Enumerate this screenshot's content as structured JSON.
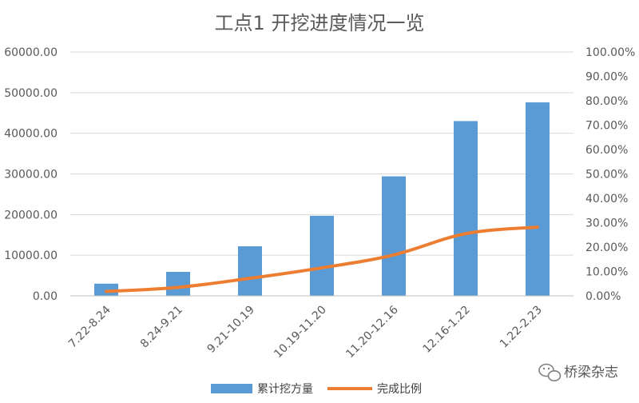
{
  "chart_data": {
    "type": "bar",
    "title": "工点1 开挖进度情况一览",
    "categories": [
      "7.22-8.24",
      "8.24-9.21",
      "9.21-10.19",
      "10.19-11.20",
      "11.20-12.16",
      "12.16-1.22",
      "1.22-2.23"
    ],
    "series": [
      {
        "name": "累计挖方量",
        "type": "bar",
        "axis": "left",
        "color": "#5B9BD5",
        "values": [
          3000,
          5900,
          12200,
          19700,
          29400,
          43000,
          47600
        ]
      },
      {
        "name": "完成比例",
        "type": "line",
        "axis": "right",
        "color": "#ED7D31",
        "values": [
          0.018,
          0.035,
          0.072,
          0.115,
          0.168,
          0.255,
          0.282
        ]
      }
    ],
    "y_left": {
      "ylim": [
        0,
        60000
      ],
      "ticks": [
        "0.00",
        "10000.00",
        "20000.00",
        "30000.00",
        "40000.00",
        "50000.00",
        "60000.00"
      ]
    },
    "y_right": {
      "ylim": [
        0,
        1
      ],
      "ticks": [
        "0.00%",
        "10.00%",
        "20.00%",
        "30.00%",
        "40.00%",
        "50.00%",
        "60.00%",
        "70.00%",
        "80.00%",
        "90.00%",
        "100.00%"
      ]
    },
    "grid": true,
    "legend_position": "bottom"
  },
  "watermark": {
    "text": "桥梁杂志",
    "icon": "wechat-icon"
  }
}
